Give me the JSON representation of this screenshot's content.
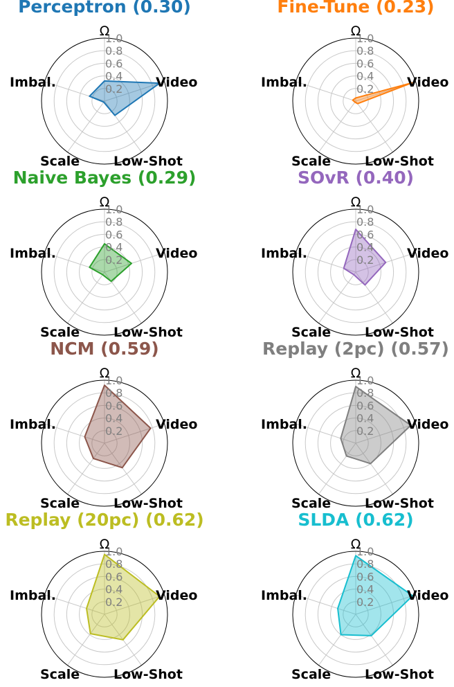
{
  "chart_data": [
    {
      "type": "radar",
      "title": "Perceptron (0.30)",
      "color": "#1f77b4",
      "axes": [
        "Ω",
        "Video",
        "Low-Shot",
        "Scale",
        "Imbal."
      ],
      "rticks": [
        "0.2",
        "0.4",
        "0.6",
        "0.8",
        "1.0"
      ],
      "rlim": [
        0,
        1
      ],
      "values": [
        0.32,
        0.92,
        0.28,
        0.02,
        0.25
      ]
    },
    {
      "type": "radar",
      "title": "Fine-Tune (0.23)",
      "color": "#ff7f0e",
      "axes": [
        "Ω",
        "Video",
        "Low-Shot",
        "Scale",
        "Imbal."
      ],
      "rticks": [
        "0.2",
        "0.4",
        "0.6",
        "0.8",
        "1.0"
      ],
      "rlim": [
        0,
        1
      ],
      "values": [
        0.05,
        0.94,
        0.05,
        0.02,
        0.05
      ]
    },
    {
      "type": "radar",
      "title": "Naive Bayes (0.29)",
      "color": "#2ca02c",
      "axes": [
        "Ω",
        "Video",
        "Low-Shot",
        "Scale",
        "Imbal."
      ],
      "rticks": [
        "0.2",
        "0.4",
        "0.6",
        "0.8",
        "1.0"
      ],
      "rlim": [
        0,
        1
      ],
      "values": [
        0.45,
        0.45,
        0.18,
        0.05,
        0.25
      ]
    },
    {
      "type": "radar",
      "title": "SOvR (0.40)",
      "color": "#9467bd",
      "axes": [
        "Ω",
        "Video",
        "Low-Shot",
        "Scale",
        "Imbal."
      ],
      "rticks": [
        "0.2",
        "0.4",
        "0.6",
        "0.8",
        "1.0"
      ],
      "rlim": [
        0,
        1
      ],
      "values": [
        0.68,
        0.5,
        0.25,
        0.05,
        0.2
      ]
    },
    {
      "type": "radar",
      "title": "NCM (0.59)",
      "color": "#8c564b",
      "axes": [
        "Ω",
        "Video",
        "Low-Shot",
        "Scale",
        "Imbal."
      ],
      "rticks": [
        "0.2",
        "0.4",
        "0.6",
        "0.8",
        "1.0"
      ],
      "rlim": [
        0,
        1
      ],
      "values": [
        0.92,
        0.77,
        0.48,
        0.3,
        0.33
      ]
    },
    {
      "type": "radar",
      "title": "Replay (2pc) (0.57)",
      "color": "#7f7f7f",
      "axes": [
        "Ω",
        "Video",
        "Low-Shot",
        "Scale",
        "Imbal."
      ],
      "rticks": [
        "0.2",
        "0.4",
        "0.6",
        "0.8",
        "1.0"
      ],
      "rlim": [
        0,
        1
      ],
      "values": [
        0.9,
        0.92,
        0.4,
        0.25,
        0.25
      ]
    },
    {
      "type": "radar",
      "title": "Replay (20pc) (0.62)",
      "color": "#bcbd22",
      "axes": [
        "Ω",
        "Video",
        "Low-Shot",
        "Scale",
        "Imbal."
      ],
      "rticks": [
        "0.2",
        "0.4",
        "0.6",
        "0.8",
        "1.0"
      ],
      "rlim": [
        0,
        1
      ],
      "values": [
        0.95,
        0.92,
        0.5,
        0.38,
        0.3
      ]
    },
    {
      "type": "radar",
      "title": "SLDA (0.62)",
      "color": "#17becf",
      "axes": [
        "Ω",
        "Video",
        "Low-Shot",
        "Scale",
        "Imbal."
      ],
      "rticks": [
        "0.2",
        "0.4",
        "0.6",
        "0.8",
        "1.0"
      ],
      "rlim": [
        0,
        1
      ],
      "values": [
        0.93,
        0.95,
        0.42,
        0.4,
        0.3
      ]
    }
  ]
}
